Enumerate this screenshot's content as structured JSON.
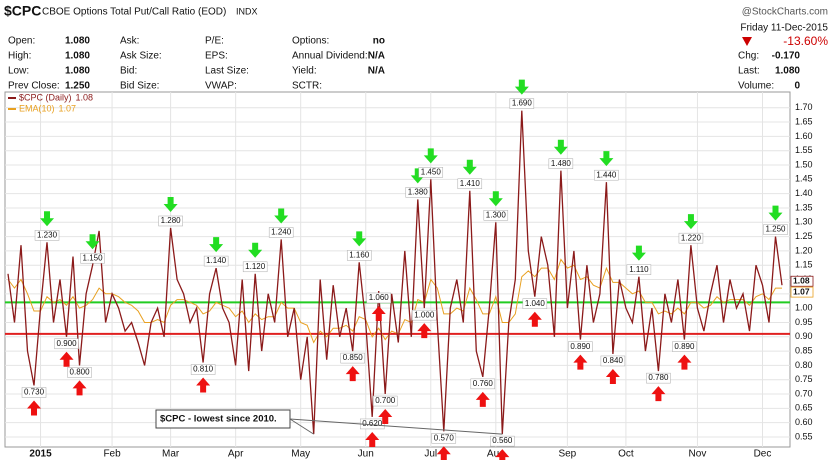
{
  "header": {
    "symbol": "$CPC",
    "name": "CBOE Options Total Put/Call Ratio (EOD)",
    "exchange": "INDX",
    "watermark": "@StockCharts.com",
    "date": "Friday 11-Dec-2015",
    "change_pct": "-13.60%",
    "columns": [
      [
        [
          "Open:",
          "1.080"
        ],
        [
          "High:",
          "1.080"
        ],
        [
          "Low:",
          "1.080"
        ],
        [
          "Prev Close:",
          "1.250"
        ]
      ],
      [
        [
          "Ask:"
        ],
        [
          "Ask Size:"
        ],
        [
          "Bid:"
        ],
        [
          "Bid Size:"
        ]
      ],
      [
        [
          "P/E:"
        ],
        [
          "EPS:"
        ],
        [
          "Last Size:"
        ],
        [
          "VWAP:"
        ]
      ],
      [
        [
          "Options:",
          "no"
        ],
        [
          "Annual Dividend:",
          "N/A"
        ],
        [
          "Yield:",
          "N/A"
        ],
        [
          "SCTR:"
        ]
      ]
    ],
    "right": [
      [
        "Chg:",
        "-0.170"
      ],
      [
        "Last:",
        "1.080"
      ],
      [
        "Volume:",
        "0"
      ]
    ]
  },
  "chart_data": {
    "type": "line",
    "categories": [
      null,
      null,
      null,
      null,
      null,
      "2015",
      null,
      null,
      null,
      null,
      null,
      null,
      null,
      null,
      null,
      null,
      "Feb",
      null,
      null,
      null,
      null,
      null,
      null,
      null,
      null,
      "Mar",
      null,
      null,
      null,
      null,
      null,
      null,
      null,
      null,
      null,
      "Apr",
      null,
      null,
      null,
      null,
      null,
      null,
      null,
      null,
      null,
      "May",
      null,
      null,
      null,
      null,
      null,
      null,
      null,
      null,
      null,
      "Jun",
      null,
      null,
      null,
      null,
      null,
      null,
      null,
      null,
      null,
      "Jul",
      null,
      null,
      null,
      null,
      null,
      null,
      null,
      null,
      null,
      "Aug",
      null,
      null,
      null,
      null,
      null,
      null,
      null,
      null,
      null,
      null,
      "Sep",
      null,
      null,
      null,
      null,
      null,
      null,
      null,
      null,
      "Oct",
      null,
      null,
      null,
      null,
      null,
      null,
      null,
      null,
      null,
      null,
      "Nov",
      null,
      null,
      null,
      null,
      null,
      null,
      null,
      null,
      null,
      "Dec",
      null,
      null,
      null
    ],
    "series": [
      {
        "name": "$CPC (Daily)",
        "last_label": "1.08",
        "color": "#8b1a1a",
        "highlight": "#1f7a1f",
        "values": [
          1.12,
          0.95,
          1.22,
          0.85,
          0.73,
          1.0,
          1.23,
          0.95,
          1.1,
          0.9,
          1.18,
          0.8,
          1.05,
          1.15,
          1.27,
          0.95,
          1.05,
          1.0,
          0.92,
          0.95,
          0.88,
          0.8,
          0.95,
          1.0,
          0.9,
          1.28,
          1.1,
          1.05,
          0.95,
          1.0,
          0.81,
          1.05,
          1.14,
          1.0,
          0.95,
          0.8,
          1.1,
          0.78,
          1.12,
          0.85,
          1.05,
          0.95,
          1.24,
          0.9,
          1.0,
          0.75,
          0.9,
          0.56,
          1.1,
          0.82,
          1.08,
          0.9,
          1.0,
          0.85,
          1.16,
          0.95,
          0.62,
          1.06,
          0.7,
          1.05,
          0.88,
          1.2,
          0.9,
          1.38,
          1.0,
          1.45,
          0.95,
          0.57,
          1.0,
          1.1,
          0.95,
          1.41,
          0.85,
          0.76,
          1.0,
          1.3,
          0.56,
          0.95,
          1.1,
          1.69,
          1.2,
          1.04,
          1.25,
          1.15,
          0.9,
          1.48,
          1.0,
          1.2,
          0.89,
          1.15,
          0.95,
          1.05,
          1.44,
          0.84,
          1.1,
          1.0,
          0.95,
          1.11,
          0.85,
          1.0,
          0.78,
          1.05,
          0.95,
          1.1,
          0.89,
          1.22,
          1.0,
          0.92,
          1.05,
          1.15,
          0.95,
          1.1,
          1.0,
          1.05,
          0.92,
          1.15,
          1.08,
          0.95,
          1.25,
          1.08
        ],
        "value_labels": [
          null,
          null,
          null,
          null,
          "0.730",
          null,
          "1.230",
          null,
          null,
          "0.900",
          null,
          "0.800",
          null,
          "1.150",
          null,
          null,
          null,
          null,
          null,
          null,
          null,
          null,
          null,
          null,
          null,
          "1.280",
          null,
          null,
          null,
          null,
          "0.810",
          null,
          "1.140",
          null,
          null,
          null,
          null,
          null,
          "1.120",
          null,
          null,
          null,
          "1.240",
          null,
          null,
          null,
          null,
          null,
          null,
          null,
          null,
          null,
          null,
          "0.850",
          "1.160",
          null,
          "0.620",
          "1.060",
          "0.700",
          null,
          null,
          null,
          null,
          "1.380",
          "1.000",
          "1.450",
          null,
          "0.570",
          null,
          null,
          null,
          "1.410",
          null,
          "0.760",
          null,
          "1.300",
          "0.560",
          null,
          null,
          "1.690",
          null,
          "1.040",
          null,
          null,
          null,
          "1.480",
          null,
          null,
          "0.890",
          null,
          null,
          null,
          "1.440",
          "0.840",
          null,
          null,
          null,
          "1.110",
          null,
          null,
          "0.780",
          null,
          null,
          null,
          "0.890",
          "1.220",
          null,
          null,
          null,
          null,
          null,
          null,
          null,
          null,
          null,
          null,
          null,
          null,
          "1.250",
          null
        ]
      },
      {
        "name": "EMA(10)",
        "last_label": "1.07",
        "color": "#e8a020",
        "values": [
          1.1,
          1.07,
          1.1,
          1.05,
          0.99,
          0.99,
          1.04,
          1.02,
          1.03,
          1.01,
          1.04,
          1.0,
          1.01,
          1.03,
          1.07,
          1.05,
          1.05,
          1.04,
          1.02,
          1.01,
          0.99,
          0.95,
          0.95,
          0.96,
          0.95,
          1.01,
          1.03,
          1.03,
          1.02,
          1.01,
          0.98,
          0.99,
          1.02,
          1.01,
          1.0,
          0.97,
          0.99,
          0.95,
          0.98,
          0.96,
          0.97,
          0.97,
          1.02,
          1.0,
          1.0,
          0.95,
          0.94,
          0.88,
          0.92,
          0.9,
          0.93,
          0.93,
          0.94,
          0.92,
          0.97,
          0.96,
          0.9,
          0.93,
          0.89,
          0.92,
          0.91,
          0.96,
          0.95,
          1.03,
          1.02,
          1.1,
          1.07,
          0.98,
          0.98,
          1.0,
          0.99,
          1.07,
          1.03,
          0.98,
          0.98,
          1.04,
          0.95,
          0.95,
          0.98,
          1.11,
          1.13,
          1.11,
          1.14,
          1.14,
          1.1,
          1.17,
          1.14,
          1.15,
          1.1,
          1.11,
          1.08,
          1.07,
          1.14,
          1.09,
          1.09,
          1.07,
          1.05,
          1.06,
          1.02,
          1.02,
          0.98,
          0.99,
          0.98,
          1.0,
          0.98,
          1.02,
          1.02,
          1.0,
          1.01,
          1.04,
          1.02,
          1.03,
          1.03,
          1.03,
          1.01,
          1.04,
          1.05,
          1.03,
          1.07,
          1.07
        ]
      }
    ],
    "reference_lines": [
      {
        "value": 1.02,
        "color": "#22cc22"
      },
      {
        "value": 0.91,
        "color": "#e02020"
      }
    ],
    "annotation": {
      "text": "$CPC - lowest since 2010.",
      "targets": [
        47,
        76
      ]
    },
    "ylim": [
      0.515,
      1.755
    ],
    "yticks": [
      0.55,
      {
        "value": 0.6,
        "label": "0.60"
      },
      0.65,
      {
        "value": 0.7,
        "label": "0.70"
      },
      0.75,
      {
        "value": 0.8,
        "label": "0.80"
      },
      0.85,
      {
        "value": 0.9,
        "label": "0.90"
      },
      0.95,
      {
        "value": 1.0,
        "label": "1.00"
      },
      1.05,
      {
        "value": 1.1,
        "label": "1.10"
      },
      1.15,
      {
        "value": 1.2,
        "label": "1.20"
      },
      1.25,
      {
        "value": 1.3,
        "label": "1.30"
      },
      1.35,
      {
        "value": 1.4,
        "label": "1.40"
      },
      1.45,
      {
        "value": 1.5,
        "label": "1.50"
      },
      1.55,
      {
        "value": 1.6,
        "label": "1.60"
      },
      1.65,
      {
        "value": 1.7,
        "label": "1.70"
      }
    ],
    "grid": true
  }
}
